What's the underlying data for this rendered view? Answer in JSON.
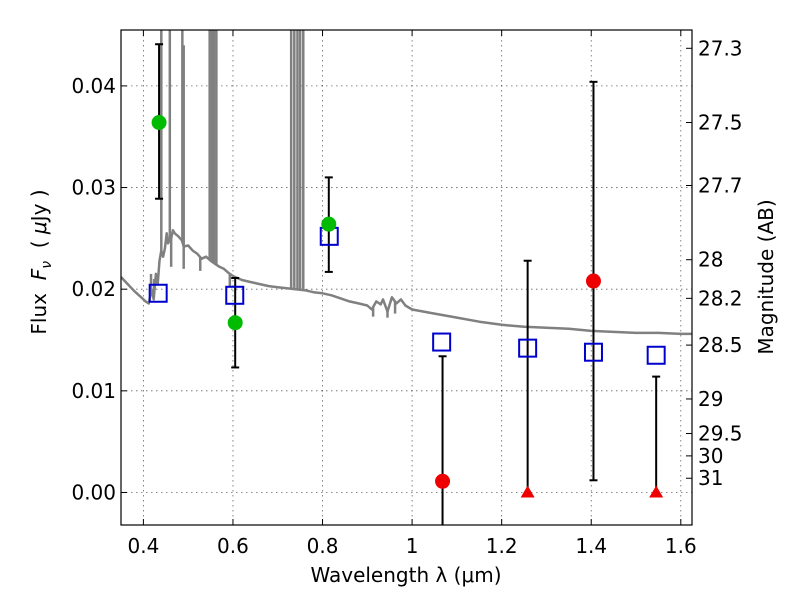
{
  "chart_data": {
    "type": "scatter",
    "xlabel": "Wavelength  λ (μm)",
    "ylabel": "Flux  F_ν  ( μJy )",
    "ylabel_parts": {
      "prefix": "Flux  ",
      "var": "F",
      "sub": "ν",
      "mid": "  ( ",
      "mu": "μ",
      "unit": "Jy",
      "suffix": " )"
    },
    "y2label": "Magnitude (AB)",
    "xlim": [
      0.35,
      1.625
    ],
    "ylim": [
      -0.0032,
      0.0455
    ],
    "grid": true,
    "x_ticks": [
      {
        "value": 0.4,
        "label": "0.4"
      },
      {
        "value": 0.6,
        "label": "0.6"
      },
      {
        "value": 0.8,
        "label": "0.8"
      },
      {
        "value": 1.0,
        "label": "1"
      },
      {
        "value": 1.2,
        "label": "1.2"
      },
      {
        "value": 1.4,
        "label": "1.4"
      },
      {
        "value": 1.6,
        "label": "1.6"
      }
    ],
    "y_ticks": [
      {
        "value": 0.0,
        "label": "0.00"
      },
      {
        "value": 0.01,
        "label": "0.01"
      },
      {
        "value": 0.02,
        "label": "0.02"
      },
      {
        "value": 0.03,
        "label": "0.03"
      },
      {
        "value": 0.04,
        "label": "0.04"
      }
    ],
    "mag_ticks": [
      {
        "value": 0.0437,
        "label": "27.3"
      },
      {
        "value": 0.0364,
        "label": "27.5"
      },
      {
        "value": 0.0302,
        "label": "27.7"
      },
      {
        "value": 0.0229,
        "label": "28"
      },
      {
        "value": 0.0191,
        "label": "28.2"
      },
      {
        "value": 0.0145,
        "label": "28.5"
      },
      {
        "value": 0.0092,
        "label": "29"
      },
      {
        "value": 0.0058,
        "label": "29.5"
      },
      {
        "value": 0.0036,
        "label": "30"
      },
      {
        "value": 0.0014,
        "label": "31"
      }
    ],
    "model_sed": {
      "color": "#808080",
      "points": [
        [
          0.35,
          0.0212
        ],
        [
          0.365,
          0.0205
        ],
        [
          0.38,
          0.0198
        ],
        [
          0.395,
          0.0192
        ],
        [
          0.405,
          0.0188
        ],
        [
          0.412,
          0.0186
        ],
        [
          0.418,
          0.02
        ],
        [
          0.423,
          0.019
        ],
        [
          0.428,
          0.0215
        ],
        [
          0.432,
          0.0205
        ],
        [
          0.436,
          0.0228
        ],
        [
          0.44,
          0.0238
        ],
        [
          0.444,
          0.0232
        ],
        [
          0.448,
          0.024
        ],
        [
          0.452,
          0.0255
        ],
        [
          0.455,
          0.0245
        ],
        [
          0.458,
          0.0248
        ],
        [
          0.462,
          0.025
        ],
        [
          0.466,
          0.0258
        ],
        [
          0.47,
          0.0255
        ],
        [
          0.478,
          0.0252
        ],
        [
          0.486,
          0.0248
        ],
        [
          0.49,
          0.0242
        ],
        [
          0.5,
          0.0243
        ],
        [
          0.51,
          0.0238
        ],
        [
          0.52,
          0.0235
        ],
        [
          0.53,
          0.023
        ],
        [
          0.54,
          0.0232
        ],
        [
          0.55,
          0.0228
        ],
        [
          0.56,
          0.0225
        ],
        [
          0.57,
          0.0222
        ],
        [
          0.58,
          0.022
        ],
        [
          0.59,
          0.0216
        ],
        [
          0.6,
          0.0213
        ],
        [
          0.61,
          0.0211
        ],
        [
          0.62,
          0.0209
        ],
        [
          0.64,
          0.0207
        ],
        [
          0.66,
          0.0205
        ],
        [
          0.68,
          0.0203
        ],
        [
          0.7,
          0.0202
        ],
        [
          0.72,
          0.0201
        ],
        [
          0.74,
          0.02
        ],
        [
          0.76,
          0.0199
        ],
        [
          0.78,
          0.0197
        ],
        [
          0.8,
          0.0196
        ],
        [
          0.82,
          0.0194
        ],
        [
          0.84,
          0.0191
        ],
        [
          0.86,
          0.0188
        ],
        [
          0.88,
          0.0186
        ],
        [
          0.9,
          0.0184
        ],
        [
          0.91,
          0.018
        ],
        [
          0.92,
          0.0188
        ],
        [
          0.93,
          0.0185
        ],
        [
          0.935,
          0.019
        ],
        [
          0.945,
          0.0178
        ],
        [
          0.955,
          0.0192
        ],
        [
          0.965,
          0.0186
        ],
        [
          0.975,
          0.019
        ],
        [
          0.985,
          0.0184
        ],
        [
          1.0,
          0.018
        ],
        [
          1.05,
          0.0176
        ],
        [
          1.1,
          0.0172
        ],
        [
          1.15,
          0.0168
        ],
        [
          1.2,
          0.0165
        ],
        [
          1.25,
          0.0163
        ],
        [
          1.3,
          0.0162
        ],
        [
          1.35,
          0.0161
        ],
        [
          1.4,
          0.0159
        ],
        [
          1.45,
          0.0158
        ],
        [
          1.5,
          0.0157
        ],
        [
          1.55,
          0.0157
        ],
        [
          1.6,
          0.0156
        ],
        [
          1.625,
          0.0156
        ]
      ],
      "spikes": [
        {
          "x": 0.417,
          "to": 0.0215
        },
        {
          "x": 0.424,
          "to": 0.021
        },
        {
          "x": 0.44,
          "to": 0.0455
        },
        {
          "x": 0.459,
          "to": 0.0455
        },
        {
          "x": 0.487,
          "to": 0.0455
        },
        {
          "x": 0.49,
          "to": 0.044
        },
        {
          "x": 0.548,
          "to": 0.0455
        },
        {
          "x": 0.553,
          "to": 0.0455
        },
        {
          "x": 0.558,
          "to": 0.0455
        },
        {
          "x": 0.563,
          "to": 0.0455
        },
        {
          "x": 0.73,
          "to": 0.0455
        },
        {
          "x": 0.737,
          "to": 0.0455
        },
        {
          "x": 0.744,
          "to": 0.0455
        },
        {
          "x": 0.75,
          "to": 0.0455
        },
        {
          "x": 0.757,
          "to": 0.0455
        }
      ],
      "dips": [
        {
          "x": 0.462,
          "to": 0.0222
        },
        {
          "x": 0.49,
          "to": 0.022
        },
        {
          "x": 0.527,
          "to": 0.0218
        },
        {
          "x": 0.593,
          "to": 0.0203
        },
        {
          "x": 0.913,
          "to": 0.0173
        },
        {
          "x": 0.945,
          "to": 0.0172
        },
        {
          "x": 0.962,
          "to": 0.0176
        }
      ]
    },
    "series": [
      {
        "marker": "square",
        "color": "#0000cc",
        "x": [
          0.433,
          0.604,
          0.815,
          1.066,
          1.258,
          1.405,
          1.545
        ],
        "y": [
          0.0196,
          0.0194,
          0.0252,
          0.0148,
          0.0142,
          0.0138,
          0.0135
        ]
      },
      {
        "marker": "circle",
        "color": "#00bb00",
        "x": [
          0.435,
          0.605,
          0.814
        ],
        "y": [
          0.0364,
          0.0167,
          0.0264
        ],
        "yerr_low": [
          0.0289,
          0.0123,
          0.0217
        ],
        "yerr_high": [
          0.0441,
          0.0211,
          0.031
        ]
      },
      {
        "marker": "circle",
        "color": "#ee0000",
        "x": [
          1.068,
          1.405
        ],
        "y": [
          0.0011,
          0.0208
        ],
        "yerr_low": [
          -0.0032,
          0.0012
        ],
        "yerr_high": [
          0.0134,
          0.0404
        ]
      },
      {
        "marker": "triangle",
        "color": "#ee0000",
        "x": [
          1.258,
          1.545
        ],
        "y": [
          0.0,
          0.0
        ],
        "yerr_low": [
          0.0,
          0.0
        ],
        "yerr_high": [
          0.0228,
          0.0114
        ]
      }
    ]
  }
}
